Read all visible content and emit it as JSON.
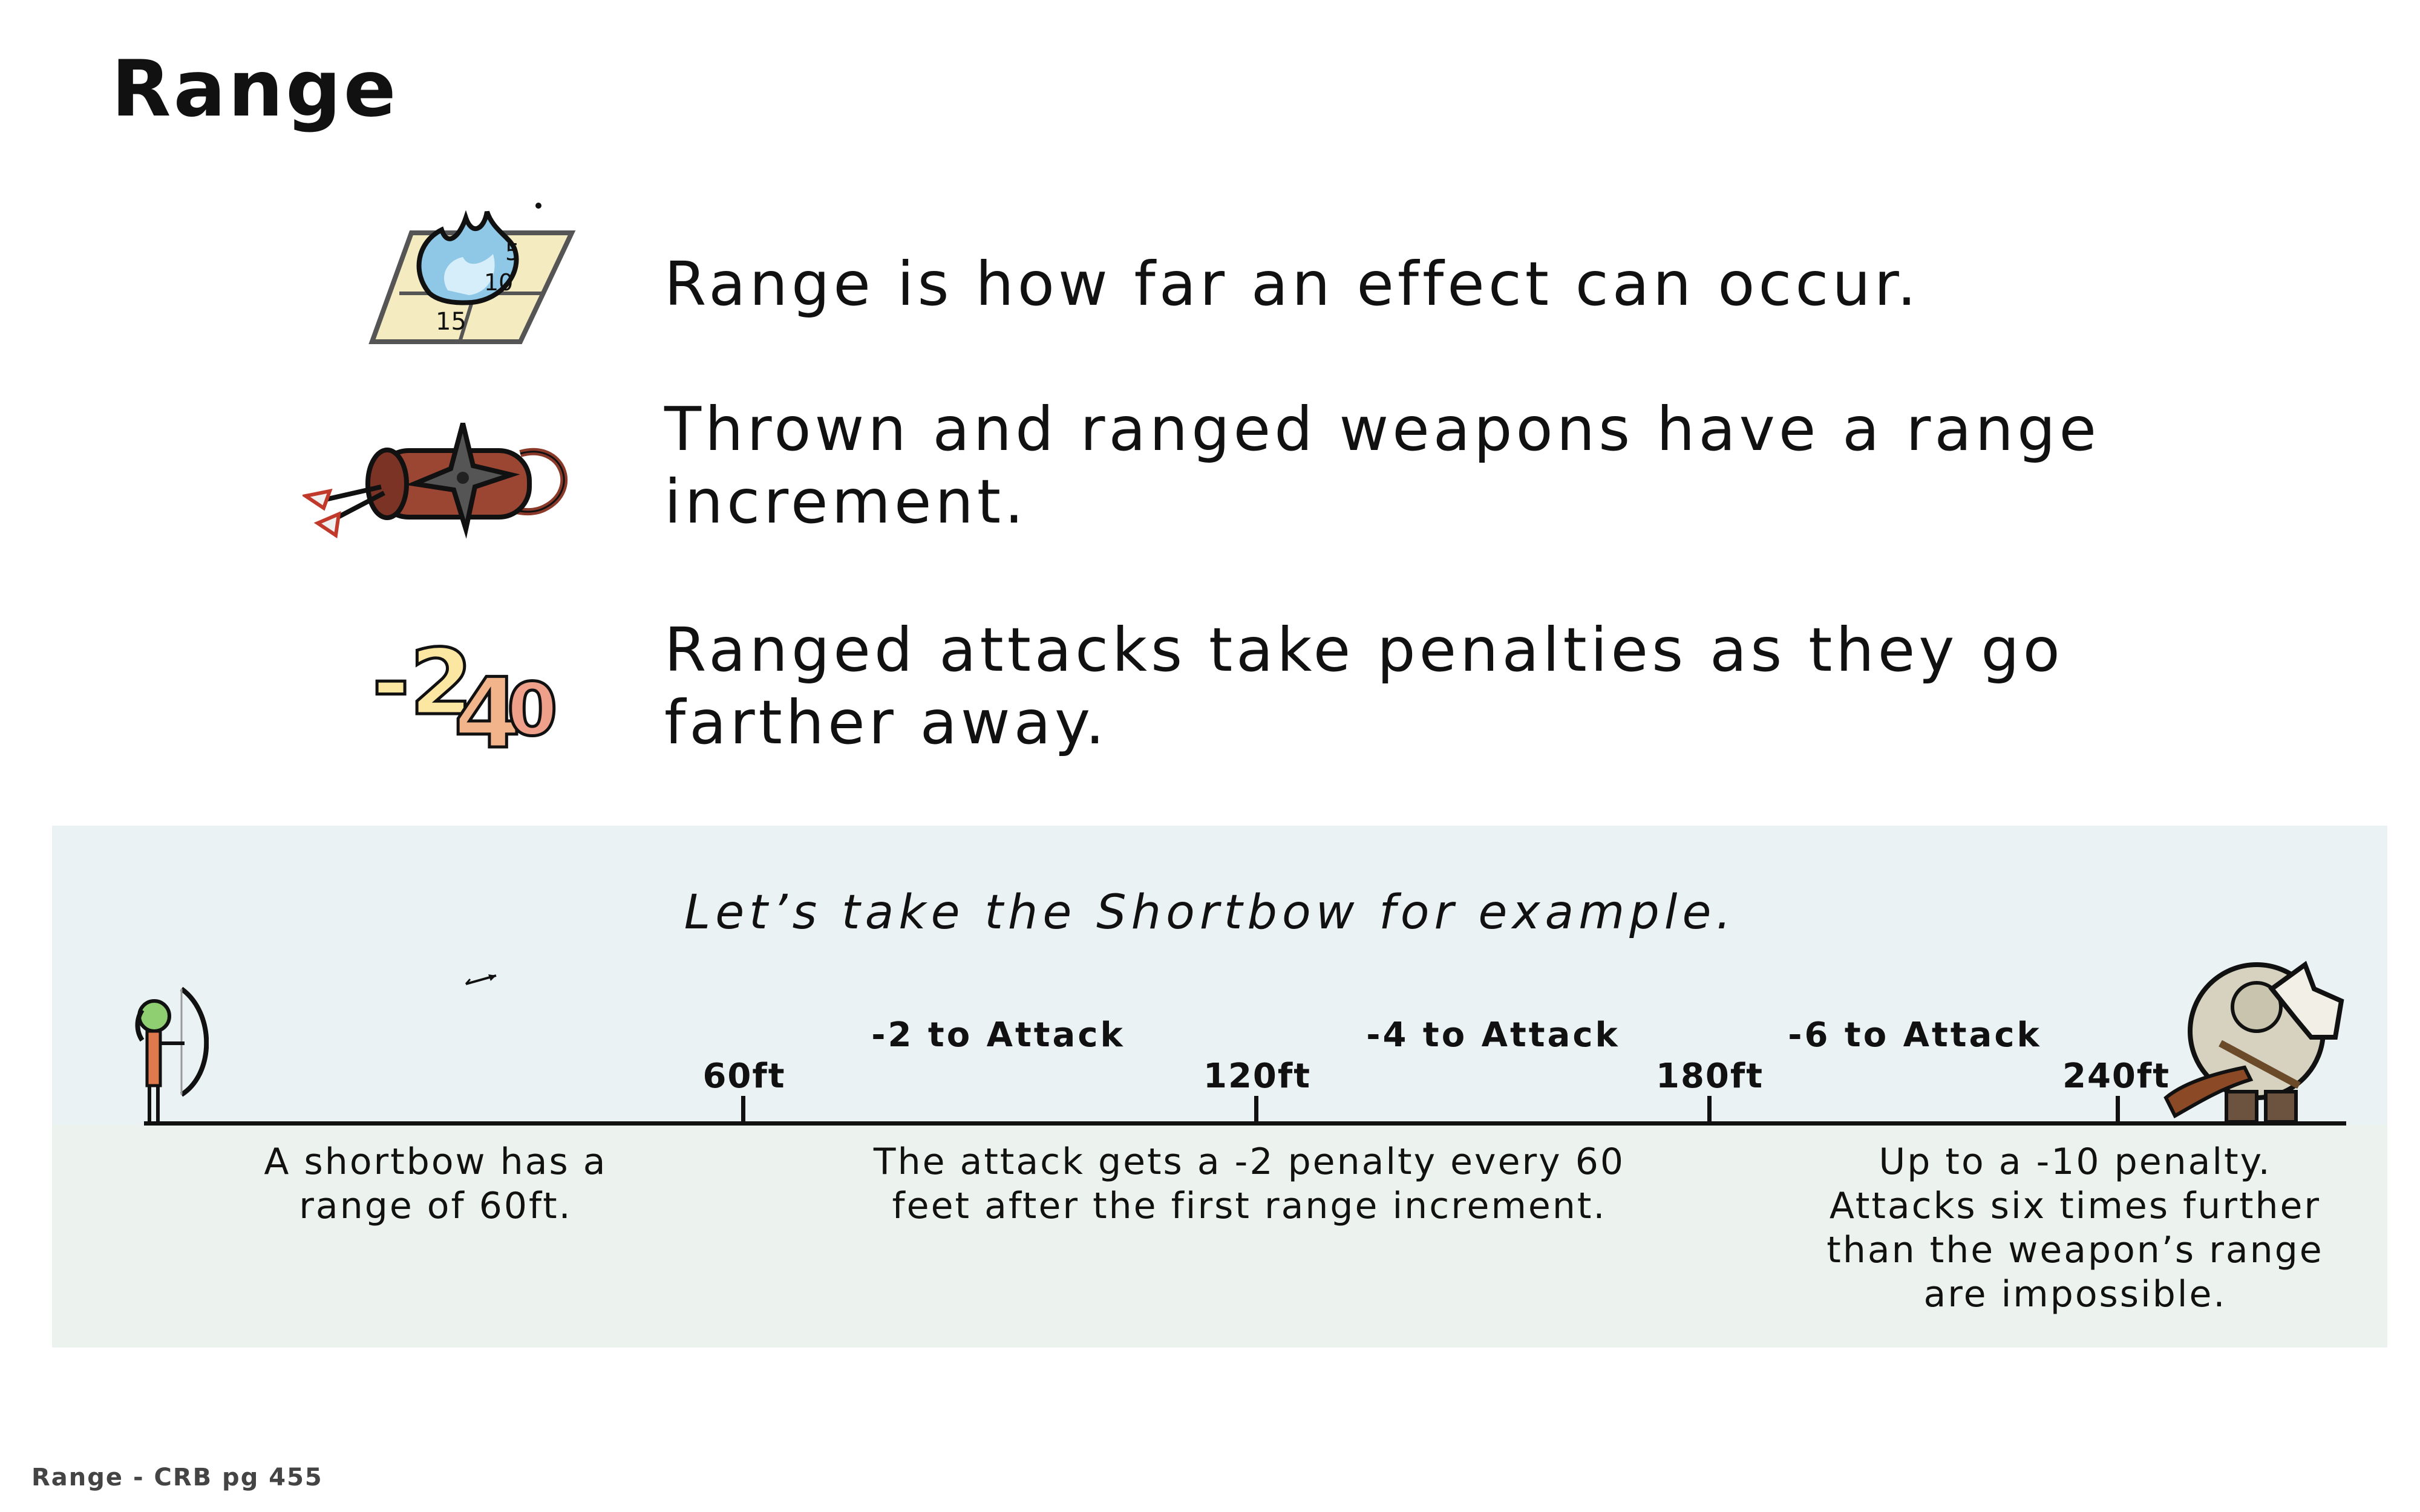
{
  "page_title": "Range",
  "bullets": [
    {
      "icon": "spell-burst-grid-icon",
      "text": "Range is how far an effect can occur."
    },
    {
      "icon": "quiver-shuriken-icon",
      "text": "Thrown and ranged weapons have a range increment."
    },
    {
      "icon": "penalty-numbers-icon",
      "text": "Ranged attacks take penalties as they go farther away."
    }
  ],
  "example": {
    "heading": "Let’s take the Shortbow for example.",
    "ticks": [
      "60ft",
      "120ft",
      "180ft",
      "240ft"
    ],
    "penalties": [
      "-2 to Attack",
      "-4 to Attack",
      "-6 to Attack"
    ],
    "notes": [
      "A shortbow has a range of 60ft.",
      "The attack gets a -2 penalty every 60 feet after the first range increment.",
      "Up to a -10 penalty. Attacks six times further than the weapon’s range are impossible."
    ],
    "colors": {
      "upper_band": "#ebf2f4",
      "lower_band": "#ecf2ed"
    }
  },
  "footer": "Range - CRB pg 455"
}
